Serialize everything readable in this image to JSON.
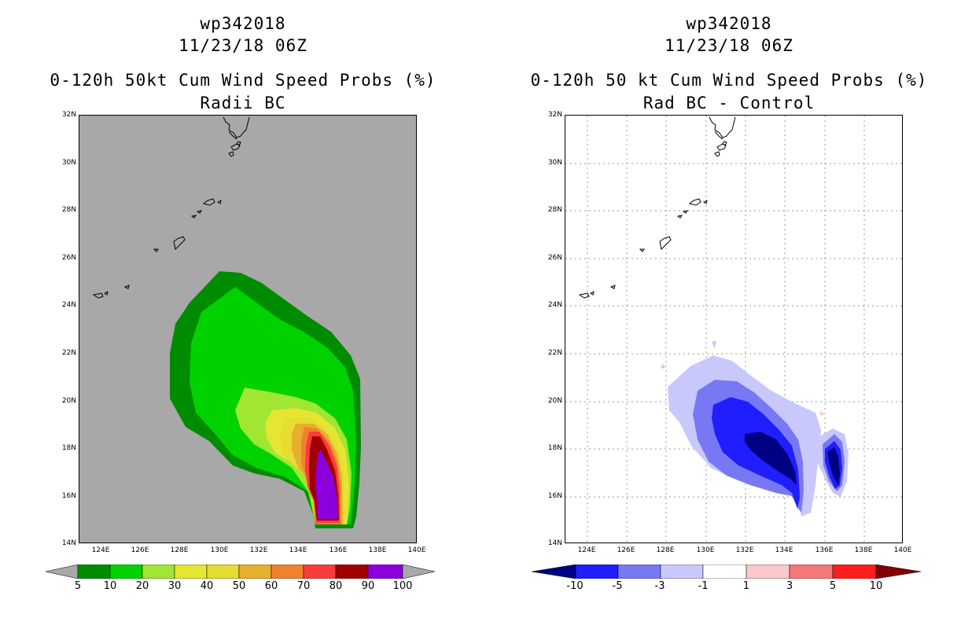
{
  "left": {
    "title_line1": "wp342018",
    "title_line2": "11/23/18 06Z",
    "title_line3": "0-120h 50kt Cum Wind Speed Probs (%)",
    "title_line4": "Radii BC",
    "lat_labels": [
      "32N",
      "30N",
      "28N",
      "26N",
      "24N",
      "22N",
      "20N",
      "18N",
      "16N",
      "14N"
    ],
    "lon_labels": [
      "124E",
      "126E",
      "128E",
      "130E",
      "132E",
      "134E",
      "136E",
      "138E",
      "140E"
    ],
    "colorbar_labels": [
      "5",
      "10",
      "20",
      "30",
      "40",
      "50",
      "60",
      "70",
      "80",
      "90",
      "100"
    ],
    "colorbar_colors": [
      "#008c00",
      "#00d200",
      "#a0e632",
      "#e6e632",
      "#e6dc32",
      "#e6af2d",
      "#f0822d",
      "#fa3c3c",
      "#a00000",
      "#8c00dc"
    ],
    "background_color": "#a8a8a8"
  },
  "right": {
    "title_line1": "wp342018",
    "title_line2": "11/23/18 06Z",
    "title_line3": "0-120h 50 kt Cum Wind Speed Probs (%)",
    "title_line4": "Rad BC - Control",
    "lat_labels": [
      "32N",
      "30N",
      "28N",
      "26N",
      "24N",
      "22N",
      "20N",
      "18N",
      "16N",
      "14N"
    ],
    "lon_labels": [
      "124E",
      "126E",
      "128E",
      "130E",
      "132E",
      "134E",
      "136E",
      "138E",
      "140E"
    ],
    "colorbar_labels": [
      "-10",
      "-5",
      "-3",
      "-1",
      "1",
      "3",
      "5",
      "10"
    ],
    "colorbar_colors": [
      "#000082",
      "#1e1eff",
      "#7878f5",
      "#c8c8fa",
      "#ffffff",
      "#fac8c8",
      "#f57878",
      "#ff1e1e",
      "#820000"
    ]
  }
}
